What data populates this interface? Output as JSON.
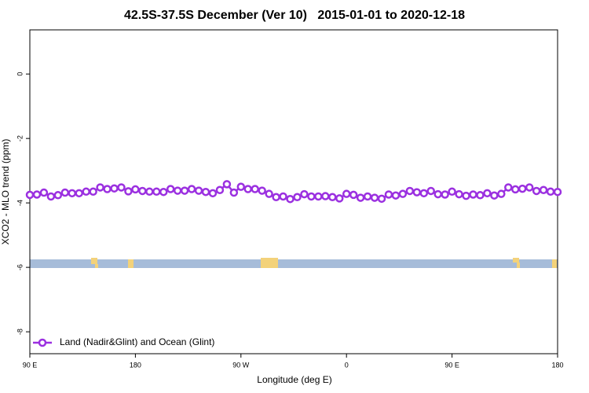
{
  "chart_data": {
    "type": "line",
    "title": "42.5S-37.5S December (Ver 10)   2015-01-01 to 2020-12-18",
    "xlabel": "Longitude (deg E)",
    "ylabel": "XCO2 - MLO trend (ppm)",
    "x": [
      90,
      96,
      102,
      108,
      114,
      120,
      126,
      132,
      138,
      144,
      150,
      156,
      162,
      168,
      174,
      180,
      186,
      192,
      198,
      204,
      210,
      216,
      222,
      228,
      234,
      240,
      246,
      252,
      258,
      264,
      270,
      276,
      282,
      288,
      294,
      300,
      306,
      312,
      318,
      324,
      330,
      336,
      342,
      348,
      354,
      360,
      366,
      372,
      378,
      384,
      390,
      396,
      402,
      408,
      414,
      420,
      426,
      432,
      438,
      444,
      450,
      456,
      462,
      468,
      474,
      480,
      486,
      492,
      498,
      504,
      510,
      516,
      522,
      528,
      534,
      540
    ],
    "series": [
      {
        "name": "Land (Nadir&Glint) and Ocean (Glint)",
        "color": "#9b30e0",
        "values": [
          -3.75,
          -3.74,
          -3.68,
          -3.8,
          -3.76,
          -3.68,
          -3.7,
          -3.7,
          -3.65,
          -3.65,
          -3.52,
          -3.57,
          -3.55,
          -3.52,
          -3.64,
          -3.58,
          -3.63,
          -3.65,
          -3.65,
          -3.66,
          -3.57,
          -3.62,
          -3.62,
          -3.57,
          -3.62,
          -3.66,
          -3.7,
          -3.6,
          -3.42,
          -3.68,
          -3.5,
          -3.57,
          -3.57,
          -3.62,
          -3.72,
          -3.82,
          -3.8,
          -3.88,
          -3.82,
          -3.73,
          -3.8,
          -3.8,
          -3.79,
          -3.82,
          -3.86,
          -3.72,
          -3.75,
          -3.84,
          -3.8,
          -3.84,
          -3.87,
          -3.74,
          -3.77,
          -3.72,
          -3.63,
          -3.67,
          -3.7,
          -3.63,
          -3.73,
          -3.74,
          -3.65,
          -3.73,
          -3.78,
          -3.74,
          -3.76,
          -3.7,
          -3.77,
          -3.72,
          -3.52,
          -3.58,
          -3.56,
          -3.52,
          -3.63,
          -3.6,
          -3.65,
          -3.66
        ]
      }
    ],
    "xlim": [
      90,
      540
    ],
    "ylim": [
      -8.68,
      1.37
    ],
    "xticks": [
      {
        "value": 90,
        "label": "90 E"
      },
      180,
      {
        "value": 270,
        "label": "90 W"
      },
      {
        "value": 360,
        "label": "0"
      },
      {
        "value": 450,
        "label": "90 E"
      },
      {
        "value": 540,
        "label": "180"
      }
    ],
    "yticks": [
      -8,
      -6,
      -4,
      -2,
      0
    ],
    "legend": "bottom-left"
  }
}
